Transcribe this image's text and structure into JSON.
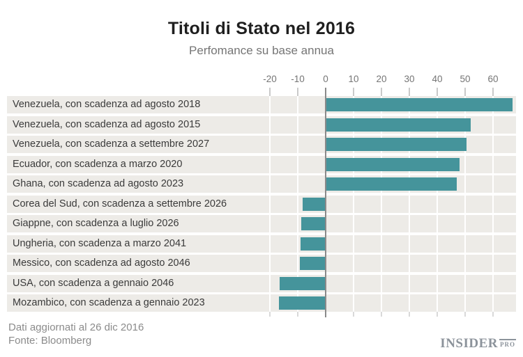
{
  "header": {
    "title": "Titoli di Stato nel 2016",
    "subtitle": "Perfomance su base annua"
  },
  "footer": {
    "updated": "Dati aggiornati al 26 dic 2016",
    "source": "Fonte: Bloomberg",
    "logo_main": "INSIDER",
    "logo_sub": "PRO"
  },
  "chart_data": {
    "type": "bar",
    "orientation": "horizontal",
    "title": "Titoli di Stato nel 2016",
    "subtitle": "Perfomance su base annua",
    "xlabel": "",
    "ylabel": "",
    "categories": [
      "Venezuela, con scadenza ad agosto 2018",
      "Venezuela, con scadenza ad agosto 2015",
      "Venezuela, con scadenza a settembre 2027",
      "Ecuador, con scadenza a marzo 2020",
      "Ghana, con scadenza ad agosto 2023",
      "Corea del Sud, con scadenza a settembre 2026",
      "Giappne, con scadenza a luglio 2026",
      "Ungheria, con scadenza a marzo 2041",
      "Messico, con scadenza ad agosto 2046",
      "USA, con scadenza a gennaio 2046",
      "Mozambico, con scadenza a gennaio 2023"
    ],
    "values": [
      67,
      52,
      50.5,
      48,
      47,
      -8.3,
      -8.7,
      -9,
      -9.3,
      -16.4,
      -16.8
    ],
    "x_ticks": [
      -20,
      -10,
      0,
      10,
      20,
      30,
      40,
      50,
      60
    ],
    "xlim": [
      -25,
      68
    ],
    "grid": "vertical gridlines at each tick, white over gray row bands",
    "legend": "none",
    "colors": {
      "bar": "#45949b",
      "row_band": "#edebe7",
      "zero_axis": "#8a8a8a",
      "axis_text": "#757575",
      "label_text": "#3a3a3a",
      "background": "#ffffff"
    }
  }
}
